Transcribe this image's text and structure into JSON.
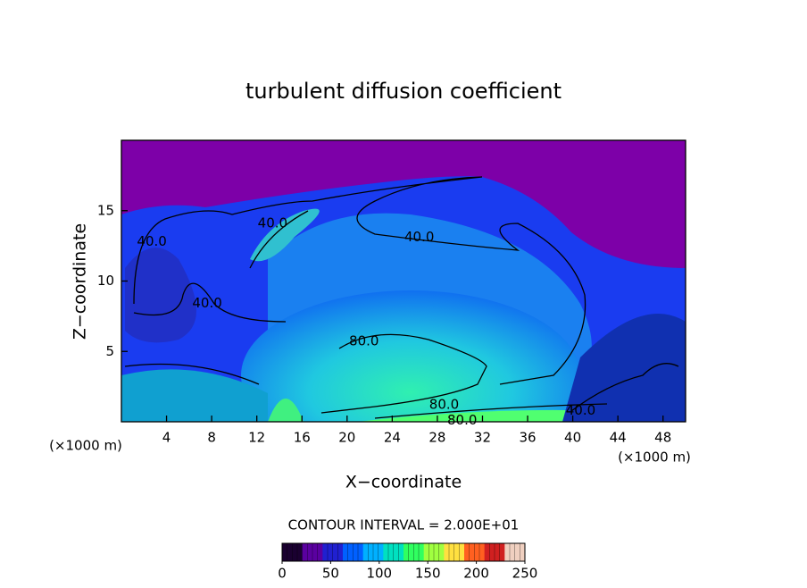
{
  "chart_data": {
    "type": "contour",
    "title": "turbulent diffusion coefficient",
    "xlabel": "X−coordinate",
    "ylabel": "Z−coordinate",
    "x_unit": "(×1000 m)",
    "y_unit": "(×1000 m)",
    "xlim": [
      0,
      50
    ],
    "ylim": [
      0,
      20
    ],
    "xticks": [
      4,
      8,
      12,
      16,
      20,
      24,
      28,
      32,
      36,
      40,
      44,
      48
    ],
    "yticks": [
      5,
      10,
      15
    ],
    "contour_interval_text": "CONTOUR INTERVAL = 2.000E+01",
    "contour_labels": [
      {
        "value": 40,
        "label": "40.0",
        "x": 2.7,
        "y": 12.8
      },
      {
        "value": 40,
        "label": "40.0",
        "x": 13.4,
        "y": 14.1
      },
      {
        "value": 40,
        "label": "40.0",
        "x": 7.6,
        "y": 8.4
      },
      {
        "value": 40,
        "label": "40.0",
        "x": 26.4,
        "y": 13.1
      },
      {
        "value": 80,
        "label": "80.0",
        "x": 21.5,
        "y": 5.7
      },
      {
        "value": 80,
        "label": "80.0",
        "x": 28.6,
        "y": 1.2
      },
      {
        "value": 80,
        "label": "80.0",
        "x": 30.2,
        "y": 0.1
      },
      {
        "value": 40,
        "label": "40.0",
        "x": 40.7,
        "y": 0.8
      }
    ],
    "colorbar": {
      "lim": [
        0,
        250
      ],
      "ticks": [
        0,
        50,
        100,
        150,
        200,
        250
      ],
      "colors": [
        "#1a0030",
        "#5a00a0",
        "#2020d0",
        "#0060ff",
        "#00b0ff",
        "#00e0c0",
        "#30ff60",
        "#a0ff40",
        "#ffe040",
        "#ff6020",
        "#d02020",
        "#f0d0c0"
      ]
    }
  }
}
